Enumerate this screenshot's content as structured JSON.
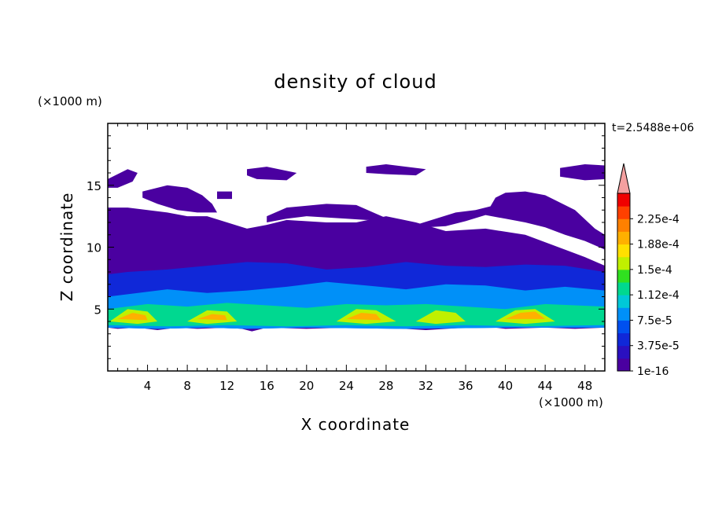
{
  "chart_data": {
    "type": "heatmap",
    "title": "density of cloud",
    "xlabel": "X coordinate",
    "ylabel": "Z coordinate",
    "x_unit": "(×1000 m)",
    "y_unit": "(×1000 m)",
    "time_label": "t=2.5488e+06",
    "xlim": [
      0,
      50
    ],
    "ylim": [
      0,
      20
    ],
    "x_ticks": [
      4,
      8,
      12,
      16,
      20,
      24,
      28,
      32,
      36,
      40,
      44,
      48
    ],
    "y_ticks": [
      5,
      10,
      15
    ],
    "colorbar": {
      "labels": [
        "1e-16",
        "3.75e-5",
        "7.5e-5",
        "1.12e-4",
        "1.5e-4",
        "1.88e-4",
        "2.25e-4"
      ],
      "colors": [
        "#4a00a0",
        "#2a10c0",
        "#1028d8",
        "#0050f0",
        "#0090f8",
        "#00c8d8",
        "#00d890",
        "#30e020",
        "#c0f000",
        "#ffe000",
        "#ffb000",
        "#ff8000",
        "#ff4000",
        "#f00000"
      ],
      "extend_color": "#f4a0a0"
    },
    "regions": [
      {
        "level": 0,
        "points": [
          [
            0,
            3.5
          ],
          [
            1,
            3.4
          ],
          [
            3,
            3.5
          ],
          [
            5,
            3.3
          ],
          [
            7,
            3.5
          ],
          [
            9,
            3.4
          ],
          [
            12,
            3.5
          ],
          [
            13.5,
            3.4
          ],
          [
            14.5,
            3.2
          ],
          [
            16,
            3.5
          ],
          [
            20,
            3.4
          ],
          [
            24,
            3.5
          ],
          [
            28,
            3.5
          ],
          [
            32,
            3.3
          ],
          [
            36,
            3.5
          ],
          [
            38,
            3.6
          ],
          [
            40,
            3.4
          ],
          [
            44,
            3.5
          ],
          [
            47,
            3.4
          ],
          [
            50,
            3.5
          ],
          [
            50,
            8.5
          ],
          [
            48,
            9.2
          ],
          [
            46,
            9.8
          ],
          [
            42,
            11
          ],
          [
            38,
            11.5
          ],
          [
            34,
            11.3
          ],
          [
            31,
            12
          ],
          [
            28,
            12.5
          ],
          [
            25,
            12
          ],
          [
            22,
            12
          ],
          [
            18,
            12.2
          ],
          [
            16,
            11.8
          ],
          [
            14,
            11.5
          ],
          [
            12,
            12
          ],
          [
            10,
            12.5
          ],
          [
            8,
            12.5
          ],
          [
            6,
            12.8
          ],
          [
            4,
            13
          ],
          [
            2,
            13.2
          ],
          [
            0,
            13.2
          ]
        ]
      },
      {
        "level": 0,
        "points": [
          [
            16,
            12.5
          ],
          [
            18,
            13.2
          ],
          [
            22,
            13.5
          ],
          [
            25,
            13.4
          ],
          [
            27,
            12.7
          ],
          [
            29,
            12
          ],
          [
            31,
            11.8
          ],
          [
            33,
            12.3
          ],
          [
            35,
            12.8
          ],
          [
            37,
            13
          ],
          [
            38.5,
            13.3
          ],
          [
            39,
            14
          ],
          [
            40,
            14.4
          ],
          [
            42,
            14.5
          ],
          [
            44,
            14.2
          ],
          [
            45,
            13.8
          ],
          [
            47,
            13
          ],
          [
            49,
            11.5
          ],
          [
            50,
            11
          ],
          [
            50,
            9.8
          ],
          [
            48,
            10.5
          ],
          [
            46,
            11
          ],
          [
            44,
            11.6
          ],
          [
            42,
            12
          ],
          [
            40,
            12.3
          ],
          [
            38,
            12.6
          ],
          [
            36,
            12.1
          ],
          [
            34,
            11.7
          ],
          [
            32,
            11.6
          ],
          [
            30,
            11.8
          ],
          [
            28,
            12.2
          ],
          [
            26,
            12.2
          ],
          [
            24,
            12.3
          ],
          [
            20,
            12.5
          ],
          [
            18,
            12.3
          ],
          [
            16,
            12
          ]
        ]
      },
      {
        "level": 0,
        "points": [
          [
            3.5,
            14.5
          ],
          [
            6,
            15
          ],
          [
            8,
            14.8
          ],
          [
            9.5,
            14.2
          ],
          [
            10.5,
            13.5
          ],
          [
            11,
            12.8
          ],
          [
            9,
            12.8
          ],
          [
            7,
            13
          ],
          [
            5,
            13.5
          ],
          [
            3.5,
            14
          ]
        ]
      },
      {
        "level": 0,
        "points": [
          [
            0,
            15.5
          ],
          [
            2,
            16.3
          ],
          [
            3,
            16
          ],
          [
            2.5,
            15.3
          ],
          [
            1,
            14.8
          ],
          [
            0,
            14.8
          ]
        ]
      },
      {
        "level": 0,
        "points": [
          [
            14,
            16.3
          ],
          [
            16,
            16.5
          ],
          [
            19,
            16
          ],
          [
            18,
            15.4
          ],
          [
            15,
            15.5
          ],
          [
            14,
            15.8
          ]
        ]
      },
      {
        "level": 0,
        "points": [
          [
            26,
            16.5
          ],
          [
            28,
            16.7
          ],
          [
            32,
            16.3
          ],
          [
            31,
            15.8
          ],
          [
            28,
            15.9
          ],
          [
            26,
            16
          ]
        ]
      },
      {
        "level": 0,
        "points": [
          [
            45.5,
            16.4
          ],
          [
            48,
            16.7
          ],
          [
            50,
            16.6
          ],
          [
            50,
            15.5
          ],
          [
            48,
            15.4
          ],
          [
            45.5,
            15.7
          ]
        ]
      },
      {
        "level": 0,
        "points": [
          [
            11,
            14.5
          ],
          [
            12.5,
            14.5
          ],
          [
            12.5,
            13.9
          ],
          [
            11,
            13.9
          ]
        ]
      },
      {
        "level": 1,
        "points": [
          [
            0,
            3.5
          ],
          [
            5,
            3.4
          ],
          [
            10,
            3.5
          ],
          [
            14,
            3.4
          ],
          [
            20,
            3.5
          ],
          [
            30,
            3.4
          ],
          [
            40,
            3.5
          ],
          [
            50,
            3.5
          ],
          [
            50,
            8
          ],
          [
            46,
            8.5
          ],
          [
            42,
            8.6
          ],
          [
            38,
            8.4
          ],
          [
            34,
            8.5
          ],
          [
            30,
            8.8
          ],
          [
            26,
            8.4
          ],
          [
            22,
            8.2
          ],
          [
            18,
            8.7
          ],
          [
            14,
            8.8
          ],
          [
            10,
            8.5
          ],
          [
            6,
            8.2
          ],
          [
            2,
            8
          ],
          [
            0,
            7.8
          ]
        ]
      },
      {
        "level": 2,
        "points": [
          [
            0,
            3.5
          ],
          [
            5,
            3.4
          ],
          [
            10,
            3.5
          ],
          [
            14,
            3.4
          ],
          [
            20,
            3.5
          ],
          [
            30,
            3.4
          ],
          [
            40,
            3.5
          ],
          [
            50,
            3.5
          ],
          [
            50,
            6.5
          ],
          [
            46,
            6.8
          ],
          [
            42,
            6.5
          ],
          [
            38,
            6.9
          ],
          [
            34,
            7
          ],
          [
            30,
            6.6
          ],
          [
            26,
            6.9
          ],
          [
            22,
            7.2
          ],
          [
            18,
            6.8
          ],
          [
            14,
            6.5
          ],
          [
            10,
            6.3
          ],
          [
            6,
            6.6
          ],
          [
            2,
            6.2
          ],
          [
            0,
            6
          ]
        ]
      },
      {
        "level": 3,
        "points": [
          [
            0,
            3.7
          ],
          [
            6,
            3.6
          ],
          [
            12,
            3.7
          ],
          [
            18,
            3.6
          ],
          [
            24,
            3.7
          ],
          [
            30,
            3.6
          ],
          [
            36,
            3.7
          ],
          [
            42,
            3.6
          ],
          [
            50,
            3.7
          ],
          [
            50,
            5.2
          ],
          [
            44,
            5.4
          ],
          [
            40,
            5
          ],
          [
            36,
            5.2
          ],
          [
            32,
            5.4
          ],
          [
            28,
            5.3
          ],
          [
            24,
            5.4
          ],
          [
            20,
            5.1
          ],
          [
            16,
            5.3
          ],
          [
            12,
            5.5
          ],
          [
            8,
            5.2
          ],
          [
            4,
            5.4
          ],
          [
            0,
            5
          ]
        ]
      },
      {
        "level": 4,
        "points": [
          [
            0.2,
            4
          ],
          [
            2,
            5
          ],
          [
            4,
            4.8
          ],
          [
            5,
            4
          ],
          [
            3,
            3.8
          ]
        ]
      },
      {
        "level": 4,
        "points": [
          [
            8,
            4
          ],
          [
            10,
            4.9
          ],
          [
            12,
            4.8
          ],
          [
            13,
            4
          ],
          [
            10,
            3.8
          ]
        ]
      },
      {
        "level": 4,
        "points": [
          [
            23,
            4
          ],
          [
            25,
            5
          ],
          [
            27,
            4.9
          ],
          [
            29,
            4
          ],
          [
            26,
            3.8
          ]
        ]
      },
      {
        "level": 4,
        "points": [
          [
            31,
            4
          ],
          [
            33,
            4.9
          ],
          [
            35,
            4.7
          ],
          [
            36,
            4
          ],
          [
            33,
            3.8
          ]
        ]
      },
      {
        "level": 4,
        "points": [
          [
            39,
            4
          ],
          [
            41,
            4.9
          ],
          [
            43,
            5
          ],
          [
            45,
            4
          ],
          [
            42,
            3.8
          ]
        ]
      },
      {
        "level": 5,
        "points": [
          [
            1,
            4.2
          ],
          [
            2.5,
            4.7
          ],
          [
            3.8,
            4.5
          ],
          [
            4,
            4.1
          ]
        ]
      },
      {
        "level": 5,
        "points": [
          [
            9,
            4.2
          ],
          [
            10.5,
            4.6
          ],
          [
            11.8,
            4.5
          ],
          [
            12,
            4.1
          ]
        ]
      },
      {
        "level": 5,
        "points": [
          [
            24,
            4.2
          ],
          [
            25.5,
            4.7
          ],
          [
            27,
            4.6
          ],
          [
            27.5,
            4.1
          ]
        ]
      },
      {
        "level": 5,
        "points": [
          [
            40,
            4.2
          ],
          [
            41.5,
            4.7
          ],
          [
            43,
            4.8
          ],
          [
            44,
            4.2
          ]
        ]
      }
    ]
  }
}
